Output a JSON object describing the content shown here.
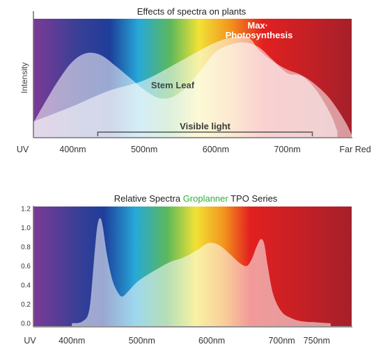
{
  "colors": {
    "violet": "#7c3a96",
    "blue": "#1e3e9a",
    "cyan": "#27a8d8",
    "green": "#5cb85c",
    "yellow": "#f2e236",
    "orange": "#f2931d",
    "red": "#e32020",
    "dark_red": "#a5202a",
    "brand_green": "#2fae3a",
    "overlay": "#ffffff"
  },
  "chart_data": [
    {
      "type": "area",
      "title": "Effects of spectra on plants",
      "ylabel": "Intensity",
      "x_tick_labels": [
        "UV",
        "400nm",
        "500nm",
        "600nm",
        "700nm",
        "Far Red"
      ],
      "x_ticks_nm": [
        330,
        400,
        500,
        600,
        700,
        795
      ],
      "xlim": [
        345,
        790
      ],
      "ylim": [
        0,
        1
      ],
      "grid": false,
      "annotations": {
        "max_photosynthesis": "Max·\nPhotosynthesis",
        "stem_leaf": "Stem Leaf",
        "visible_light": "Visible light"
      },
      "visible_range_nm": [
        435,
        735
      ],
      "series": [
        {
          "x": [
            345,
            360,
            380,
            400,
            420,
            440,
            460,
            480,
            500,
            520,
            540,
            560,
            580,
            600,
            620,
            640,
            660,
            680,
            700,
            720,
            740,
            760,
            780,
            790
          ],
          "y": [
            0.12,
            0.28,
            0.48,
            0.64,
            0.71,
            0.69,
            0.6,
            0.5,
            0.4,
            0.33,
            0.34,
            0.43,
            0.57,
            0.72,
            0.78,
            0.8,
            0.76,
            0.65,
            0.54,
            0.52,
            0.44,
            0.32,
            0.14,
            0.02
          ]
        },
        {
          "x": [
            345,
            400,
            450,
            500,
            550,
            580,
            600,
            620,
            640,
            650,
            660,
            680,
            700,
            720,
            740,
            760,
            770
          ],
          "y": [
            0.13,
            0.26,
            0.39,
            0.48,
            0.64,
            0.74,
            0.8,
            0.84,
            0.85,
            0.82,
            0.74,
            0.64,
            0.57,
            0.52,
            0.4,
            0.2,
            0.05
          ]
        }
      ]
    },
    {
      "type": "area",
      "title_parts": [
        "Relative Spectra ",
        "Groplanner",
        " TPO Series"
      ],
      "x_tick_labels": [
        "UV",
        "400nm",
        "500nm",
        "600nm",
        "700nm",
        "750nm"
      ],
      "x_ticks_nm": [
        340,
        400,
        500,
        600,
        700,
        750
      ],
      "xlim": [
        345,
        800
      ],
      "y_ticks": [
        "1.2",
        "1.0",
        "0.8",
        "0.6",
        "0.4",
        "0.2",
        "0.0"
      ],
      "ylim": [
        0,
        1.2
      ],
      "grid": false,
      "series": [
        {
          "x": [
            400,
            415,
            425,
            432,
            436,
            440,
            444,
            450,
            458,
            466,
            472,
            480,
            490,
            500,
            520,
            540,
            560,
            580,
            595,
            610,
            625,
            640,
            650,
            657,
            664,
            670,
            675,
            680,
            688,
            700,
            715,
            730,
            750,
            770
          ],
          "y": [
            0.0,
            0.02,
            0.15,
            0.7,
            1.0,
            1.1,
            1.02,
            0.72,
            0.45,
            0.32,
            0.28,
            0.33,
            0.41,
            0.47,
            0.56,
            0.64,
            0.69,
            0.77,
            0.84,
            0.82,
            0.73,
            0.63,
            0.6,
            0.67,
            0.8,
            0.88,
            0.83,
            0.6,
            0.3,
            0.12,
            0.05,
            0.02,
            0.01,
            0.0
          ]
        }
      ]
    }
  ]
}
